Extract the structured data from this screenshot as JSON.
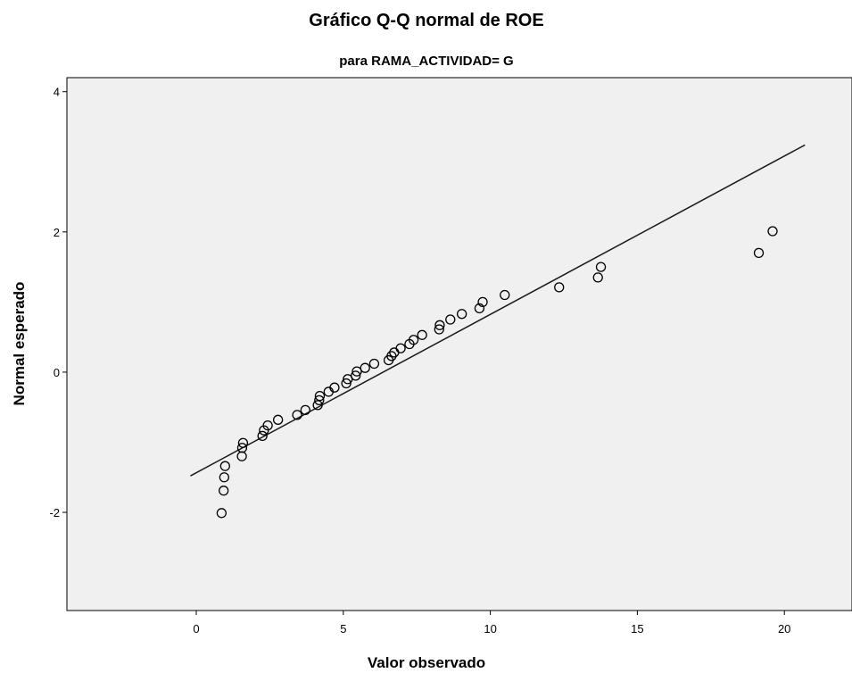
{
  "chart_data": {
    "type": "scatter",
    "title": "Gráfico Q-Q normal de ROE",
    "subtitle": "para RAMA_ACTIVIDAD= G",
    "xlabel": "Valor observado",
    "ylabel": "Normal esperado",
    "xlim": [
      -4.4,
      22.3
    ],
    "ylim": [
      -3.4,
      4.2
    ],
    "xticks": [
      "0",
      "5",
      "10",
      "15",
      "20"
    ],
    "yticks": [
      "-2",
      "0",
      "2",
      "4"
    ],
    "grid": false,
    "background_color": "#f0f0f0",
    "marker_color": "#000000",
    "reference_line": {
      "x": [
        -0.2,
        20.7
      ],
      "y": [
        -1.48,
        3.24
      ]
    },
    "points": [
      {
        "x": 0.86,
        "y": -2.01
      },
      {
        "x": 0.93,
        "y": -1.69
      },
      {
        "x": 0.95,
        "y": -1.5
      },
      {
        "x": 0.98,
        "y": -1.34
      },
      {
        "x": 1.55,
        "y": -1.2
      },
      {
        "x": 1.56,
        "y": -1.08
      },
      {
        "x": 1.59,
        "y": -1.01
      },
      {
        "x": 2.25,
        "y": -0.91
      },
      {
        "x": 2.3,
        "y": -0.83
      },
      {
        "x": 2.43,
        "y": -0.76
      },
      {
        "x": 2.78,
        "y": -0.68
      },
      {
        "x": 3.43,
        "y": -0.61
      },
      {
        "x": 3.71,
        "y": -0.54
      },
      {
        "x": 4.13,
        "y": -0.47
      },
      {
        "x": 4.18,
        "y": -0.4
      },
      {
        "x": 4.2,
        "y": -0.34
      },
      {
        "x": 4.5,
        "y": -0.28
      },
      {
        "x": 4.7,
        "y": -0.22
      },
      {
        "x": 5.1,
        "y": -0.16
      },
      {
        "x": 5.15,
        "y": -0.1
      },
      {
        "x": 5.42,
        "y": -0.05
      },
      {
        "x": 5.46,
        "y": 0.01
      },
      {
        "x": 5.74,
        "y": 0.06
      },
      {
        "x": 6.05,
        "y": 0.12
      },
      {
        "x": 6.54,
        "y": 0.17
      },
      {
        "x": 6.64,
        "y": 0.23
      },
      {
        "x": 6.73,
        "y": 0.28
      },
      {
        "x": 6.95,
        "y": 0.34
      },
      {
        "x": 7.25,
        "y": 0.4
      },
      {
        "x": 7.39,
        "y": 0.46
      },
      {
        "x": 7.68,
        "y": 0.53
      },
      {
        "x": 8.26,
        "y": 0.61
      },
      {
        "x": 8.28,
        "y": 0.67
      },
      {
        "x": 8.64,
        "y": 0.75
      },
      {
        "x": 9.03,
        "y": 0.83
      },
      {
        "x": 9.63,
        "y": 0.91
      },
      {
        "x": 9.74,
        "y": 1.0
      },
      {
        "x": 10.49,
        "y": 1.1
      },
      {
        "x": 12.34,
        "y": 1.21
      },
      {
        "x": 13.66,
        "y": 1.35
      },
      {
        "x": 13.76,
        "y": 1.5
      },
      {
        "x": 19.13,
        "y": 1.7
      },
      {
        "x": 19.6,
        "y": 2.01
      }
    ]
  }
}
